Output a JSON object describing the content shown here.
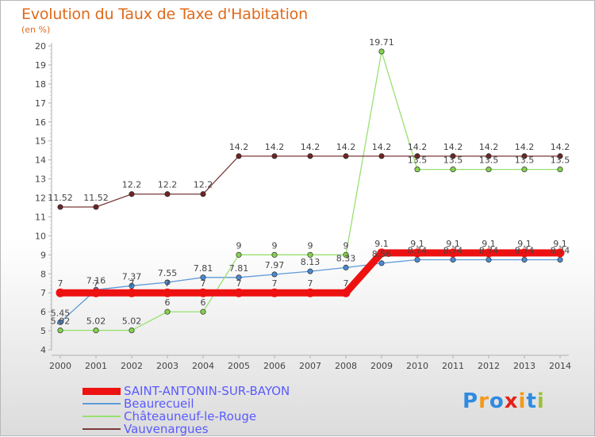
{
  "title": "Evolution du Taux de Taxe d'Habitation",
  "unit": "(en %)",
  "logo": {
    "text": "Proxiti",
    "colors": [
      "#2f8be0",
      "#f29a1a",
      "#2f8be0",
      "#e2231a",
      "#f29a1a",
      "#2f8be0",
      "#9ec03a"
    ]
  },
  "chart_data": {
    "type": "line",
    "x": [
      "2000",
      "2001",
      "2002",
      "2003",
      "2004",
      "2005",
      "2006",
      "2007",
      "2008",
      "2009",
      "2010",
      "2011",
      "2012",
      "2013",
      "2014"
    ],
    "ylim": [
      4,
      20
    ],
    "yticks": [
      "4",
      "5",
      "6",
      "7",
      "8",
      "9",
      "10",
      "11",
      "12",
      "13",
      "14",
      "15",
      "16",
      "17",
      "18",
      "19",
      "20"
    ],
    "grid": false,
    "legend": "bottom-left",
    "series": [
      {
        "name": "SAINT-ANTONIN-SUR-BAYON",
        "color": "#ee1111",
        "width": 9,
        "values": [
          7,
          7,
          7,
          7,
          7,
          7,
          7,
          7,
          7,
          9.1,
          9.1,
          9.1,
          9.1,
          9.1,
          9.1
        ],
        "labels": [
          "7",
          "7",
          "7",
          "7",
          "7",
          "7",
          "7",
          "7",
          "7",
          "9.1",
          "9.1",
          "9.1",
          "9.1",
          "9.1",
          "9.1"
        ]
      },
      {
        "name": "Beaurecueil",
        "color": "#5d9ad8",
        "width": 1.3,
        "marker": "#4a8ad0",
        "values": [
          5.45,
          7.16,
          7.37,
          7.55,
          7.81,
          7.81,
          7.97,
          8.13,
          8.33,
          8.56,
          8.74,
          8.74,
          8.74,
          8.74,
          8.74
        ],
        "labels": [
          "5.45",
          "7.16",
          "7.37",
          "7.55",
          "7.81",
          "7.81",
          "7.97",
          "8.13",
          "8.33",
          "8.56",
          "8.74",
          "8.74",
          "8.74",
          "8.74",
          "8.74"
        ]
      },
      {
        "name": "Châteauneuf-le-Rouge",
        "color": "#99e070",
        "width": 1.3,
        "marker": "#86d24d",
        "values": [
          5.02,
          5.02,
          5.02,
          6,
          6,
          9,
          9,
          9,
          9,
          19.71,
          13.5,
          13.5,
          13.5,
          13.5,
          13.5
        ],
        "labels": [
          "5.02",
          "5.02",
          "5.02",
          "6",
          "6",
          "9",
          "9",
          "9",
          "9",
          "19.71",
          "13.5",
          "13.5",
          "13.5",
          "13.5",
          "13.5"
        ]
      },
      {
        "name": "Vauvenargues",
        "color": "#7a3a3a",
        "width": 1.3,
        "marker": "#6e2424",
        "values": [
          11.52,
          11.52,
          12.2,
          12.2,
          12.2,
          14.2,
          14.2,
          14.2,
          14.2,
          14.2,
          14.2,
          14.2,
          14.2,
          14.2,
          14.2
        ],
        "labels": [
          "11.52",
          "11.52",
          "12.2",
          "12.2",
          "12.2",
          "14.2",
          "14.2",
          "14.2",
          "14.2",
          "14.2",
          "14.2",
          "14.2",
          "14.2",
          "14.2",
          "14.2"
        ]
      }
    ]
  }
}
